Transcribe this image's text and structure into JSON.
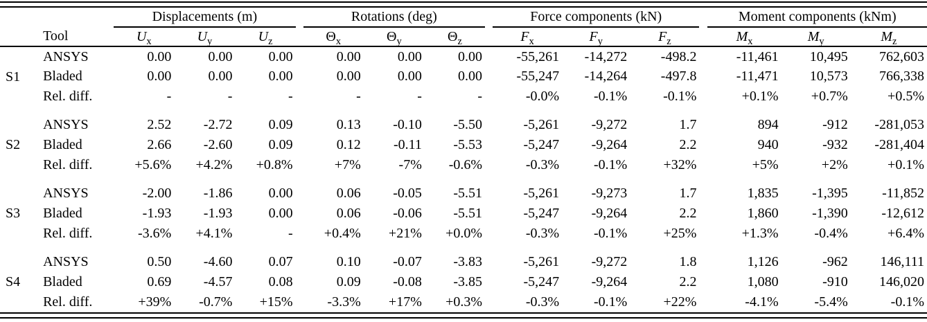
{
  "table": {
    "tool_header": "Tool",
    "group_headers": [
      {
        "label": "Displacements (m)"
      },
      {
        "label": "Rotations (deg)"
      },
      {
        "label": "Force components (kN)"
      },
      {
        "label": "Moment components (kNm)"
      }
    ],
    "column_symbols": [
      {
        "base": "U",
        "sub": "x",
        "italic": true
      },
      {
        "base": "U",
        "sub": "y",
        "italic": true
      },
      {
        "base": "U",
        "sub": "z",
        "italic": true
      },
      {
        "base": "Θ",
        "sub": "x",
        "italic": false
      },
      {
        "base": "Θ",
        "sub": "y",
        "italic": false
      },
      {
        "base": "Θ",
        "sub": "z",
        "italic": false
      },
      {
        "base": "F",
        "sub": "x",
        "italic": true
      },
      {
        "base": "F",
        "sub": "y",
        "italic": true
      },
      {
        "base": "F",
        "sub": "z",
        "italic": true
      },
      {
        "base": "M",
        "sub": "x",
        "italic": true
      },
      {
        "base": "M",
        "sub": "y",
        "italic": true
      },
      {
        "base": "M",
        "sub": "z",
        "italic": true
      }
    ],
    "sections": [
      {
        "id": "S1",
        "rows": [
          {
            "tool": "ANSYS",
            "values": [
              "0.00",
              "0.00",
              "0.00",
              "0.00",
              "0.00",
              "0.00",
              "-55,261",
              "-14,272",
              "-498.2",
              "-11,461",
              "10,495",
              "762,603"
            ]
          },
          {
            "tool": "Bladed",
            "values": [
              "0.00",
              "0.00",
              "0.00",
              "0.00",
              "0.00",
              "0.00",
              "-55,247",
              "-14,264",
              "-497.8",
              "-11,471",
              "10,573",
              "766,338"
            ]
          },
          {
            "tool": "Rel. diff.",
            "values": [
              "-",
              "-",
              "-",
              "-",
              "-",
              "-",
              "-0.0%",
              "-0.1%",
              "-0.1%",
              "+0.1%",
              "+0.7%",
              "+0.5%"
            ]
          }
        ]
      },
      {
        "id": "S2",
        "rows": [
          {
            "tool": "ANSYS",
            "values": [
              "2.52",
              "-2.72",
              "0.09",
              "0.13",
              "-0.10",
              "-5.50",
              "-5,261",
              "-9,272",
              "1.7",
              "894",
              "-912",
              "-281,053"
            ]
          },
          {
            "tool": "Bladed",
            "values": [
              "2.66",
              "-2.60",
              "0.09",
              "0.12",
              "-0.11",
              "-5.53",
              "-5,247",
              "-9,264",
              "2.2",
              "940",
              "-932",
              "-281,404"
            ]
          },
          {
            "tool": "Rel. diff.",
            "values": [
              "+5.6%",
              "+4.2%",
              "+0.8%",
              "+7%",
              "-7%",
              "-0.6%",
              "-0.3%",
              "-0.1%",
              "+32%",
              "+5%",
              "+2%",
              "+0.1%"
            ]
          }
        ]
      },
      {
        "id": "S3",
        "rows": [
          {
            "tool": "ANSYS",
            "values": [
              "-2.00",
              "-1.86",
              "0.00",
              "0.06",
              "-0.05",
              "-5.51",
              "-5,261",
              "-9,273",
              "1.7",
              "1,835",
              "-1,395",
              "-11,852"
            ]
          },
          {
            "tool": "Bladed",
            "values": [
              "-1.93",
              "-1.93",
              "0.00",
              "0.06",
              "-0.06",
              "-5.51",
              "-5,247",
              "-9,264",
              "2.2",
              "1,860",
              "-1,390",
              "-12,612"
            ]
          },
          {
            "tool": "Rel. diff.",
            "values": [
              "-3.6%",
              "+4.1%",
              "-",
              "+0.4%",
              "+21%",
              "+0.0%",
              "-0.3%",
              "-0.1%",
              "+25%",
              "+1.3%",
              "-0.4%",
              "+6.4%"
            ]
          }
        ]
      },
      {
        "id": "S4",
        "rows": [
          {
            "tool": "ANSYS",
            "values": [
              "0.50",
              "-4.60",
              "0.07",
              "0.10",
              "-0.07",
              "-3.83",
              "-5,261",
              "-9,272",
              "1.8",
              "1,126",
              "-962",
              "146,111"
            ]
          },
          {
            "tool": "Bladed",
            "values": [
              "0.69",
              "-4.57",
              "0.08",
              "0.09",
              "-0.08",
              "-3.85",
              "-5,247",
              "-9,264",
              "2.2",
              "1,080",
              "-910",
              "146,020"
            ]
          },
          {
            "tool": "Rel. diff.",
            "values": [
              "+39%",
              "-0.7%",
              "+15%",
              "-3.3%",
              "+17%",
              "+0.3%",
              "-0.3%",
              "-0.1%",
              "+22%",
              "-4.1%",
              "-5.4%",
              "-0.1%"
            ]
          }
        ]
      }
    ]
  }
}
